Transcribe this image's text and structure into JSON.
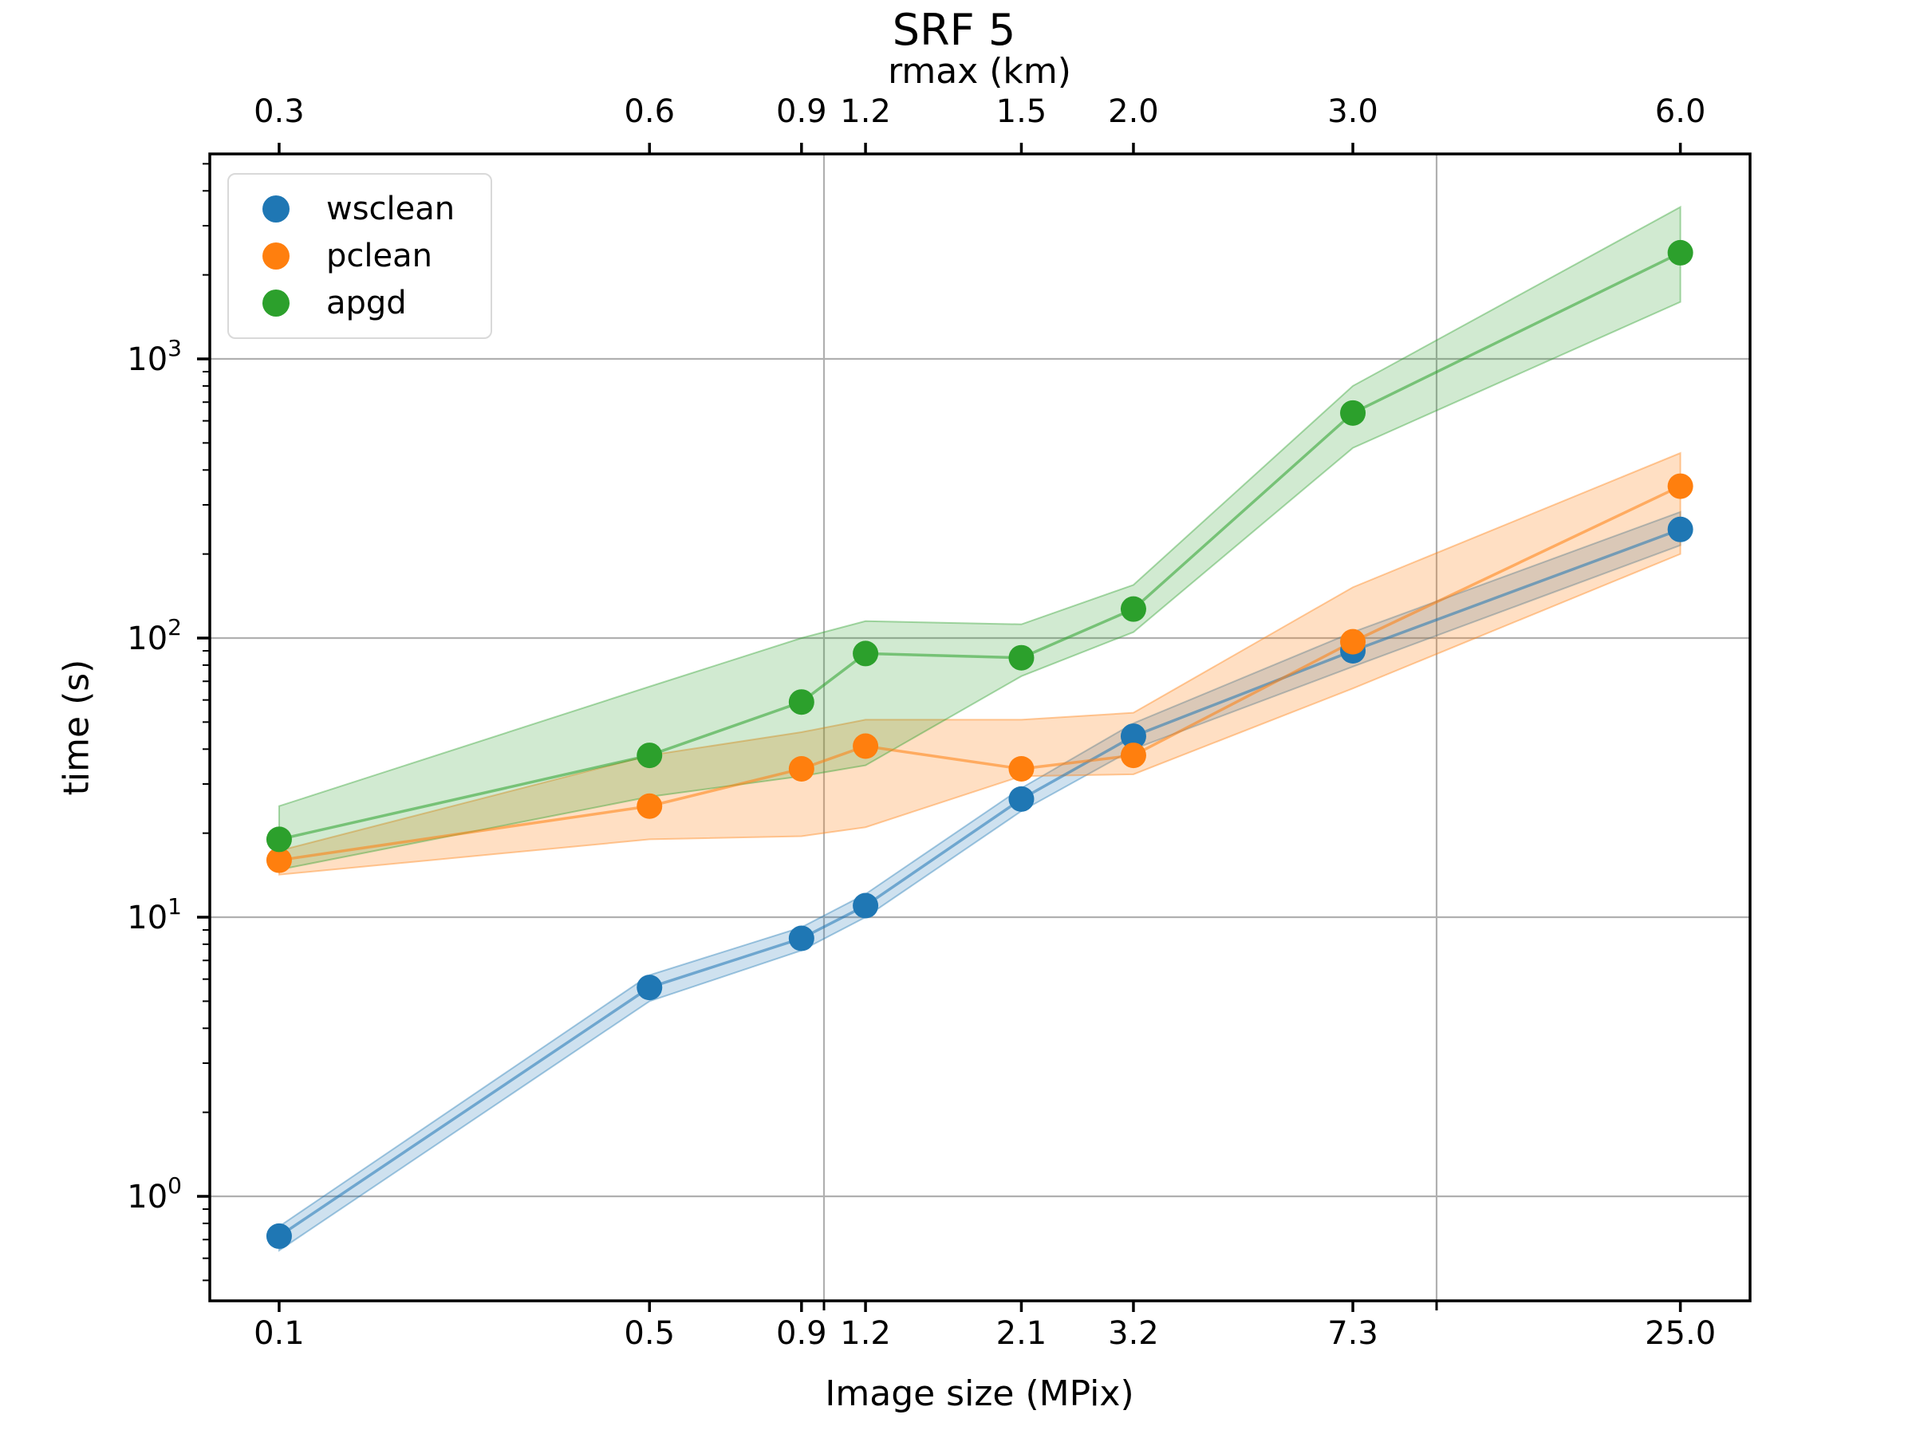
{
  "title": "SRF 5",
  "chart_data": {
    "type": "scatter",
    "title": "SRF 5",
    "x_scale": "log",
    "y_scale": "log",
    "x_label": "Image size (MPix)",
    "x_top_label": "rmax (km)",
    "y_label": "time (s)",
    "x": [
      0.129,
      0.519,
      0.919,
      1.169,
      2.1,
      3.2,
      7.3,
      25.0
    ],
    "x_tick_labels": [
      "0.1",
      "0.5",
      "0.9",
      "1.2",
      "2.1",
      "3.2",
      "7.3",
      "25.0"
    ],
    "x_top_tick_labels": [
      "0.3",
      "0.6",
      "0.9",
      "1.2",
      "1.5",
      "2.0",
      "3.0",
      "6.0"
    ],
    "xlim": [
      0.0995,
      32.6
    ],
    "ylim": [
      0.425,
      5420
    ],
    "x_grid_values": [
      1,
      10
    ],
    "y_major_ticks": [
      {
        "base": "10",
        "exp": "0",
        "value": 1
      },
      {
        "base": "10",
        "exp": "1",
        "value": 10
      },
      {
        "base": "10",
        "exp": "2",
        "value": 100
      },
      {
        "base": "10",
        "exp": "3",
        "value": 1000
      }
    ],
    "grid": true,
    "legend_position": "upper left",
    "series": [
      {
        "name": "wsclean",
        "color": "#1f77b4",
        "band_opacity": 0.22,
        "values": [
          0.72,
          5.6,
          8.4,
          11.0,
          26.5,
          44.5,
          90,
          245
        ],
        "band_lower": [
          0.64,
          5.0,
          7.6,
          10.0,
          24.0,
          40.0,
          79,
          215
        ],
        "band_upper": [
          0.78,
          6.2,
          9.2,
          12.1,
          29.0,
          49.5,
          105,
          283
        ]
      },
      {
        "name": "pclean",
        "color": "#ff7f0e",
        "band_opacity": 0.25,
        "values": [
          16,
          25,
          34,
          41,
          34,
          38,
          97,
          350
        ],
        "band_lower": [
          14.2,
          19,
          19.5,
          21,
          32,
          32.5,
          66,
          200
        ],
        "band_upper": [
          17.3,
          38,
          46,
          51,
          51,
          54,
          152,
          460
        ]
      },
      {
        "name": "apgd",
        "color": "#2ca02c",
        "band_opacity": 0.22,
        "values": [
          19,
          38,
          59,
          88,
          85,
          127,
          640,
          2400
        ],
        "band_lower": [
          14.8,
          27,
          32,
          35,
          73,
          105,
          480,
          1600
        ],
        "band_upper": [
          25,
          67,
          100,
          115,
          112,
          155,
          800,
          3500
        ]
      }
    ]
  },
  "colors": {
    "grid": "#b0b0b0",
    "spine": "#000000",
    "tick_text": "#000000",
    "legend_border": "#d9d9d9",
    "background": "#ffffff"
  }
}
